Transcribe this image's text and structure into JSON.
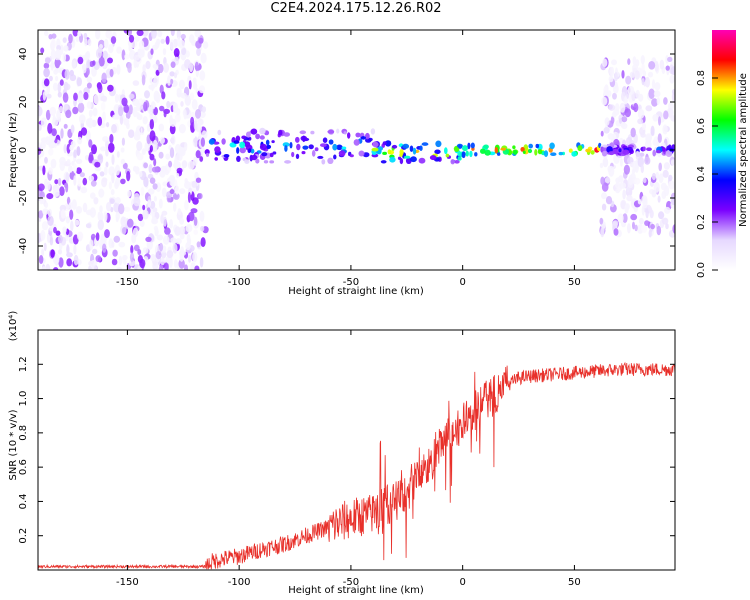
{
  "figure": {
    "title": "C2E4.2024.175.12.26.R02"
  },
  "chart_data": [
    {
      "type": "heatmap",
      "xlabel": "Height of straight line (km)",
      "ylabel": "Frequency (Hz)",
      "xlim": [
        -190,
        95
      ],
      "ylim": [
        -50,
        50
      ],
      "xticks": [
        -150,
        -100,
        -50,
        0,
        50
      ],
      "yticks": [
        -40,
        -20,
        0,
        20,
        40
      ],
      "grid": false,
      "colorbar": {
        "label": "Normalized spectral amplitude",
        "ticks": [
          0.0,
          0.2,
          0.4,
          0.6,
          0.8
        ],
        "colors": [
          "#ffffff",
          "#e6d8ff",
          "#7a00ff",
          "#0000ff",
          "#00ffff",
          "#00ff00",
          "#ffff00",
          "#ff0000",
          "#ff00b4"
        ],
        "range": [
          0,
          1
        ]
      },
      "regions": [
        {
          "x": [
            -190,
            -115
          ],
          "f": [
            -50,
            50
          ],
          "kind": "broadband noise",
          "amp": [
            0.02,
            0.25
          ]
        },
        {
          "x": [
            -115,
            -40
          ],
          "f": [
            -5,
            8
          ],
          "kind": "signal band",
          "amp": [
            0.2,
            0.5
          ]
        },
        {
          "x": [
            -40,
            0
          ],
          "f": [
            -5,
            3
          ],
          "kind": "signal band",
          "amp": [
            0.3,
            0.8
          ]
        },
        {
          "x": [
            0,
            62
          ],
          "f": [
            -2,
            2
          ],
          "kind": "signal band",
          "amp": [
            0.6,
            0.9
          ]
        },
        {
          "x": [
            62,
            95
          ],
          "f": [
            -35,
            38
          ],
          "kind": "sidelobe noise",
          "amp": [
            0.02,
            0.2
          ]
        },
        {
          "x": [
            62,
            95
          ],
          "f": [
            -2,
            2
          ],
          "kind": "signal band",
          "amp": [
            0.2,
            0.4
          ]
        }
      ]
    },
    {
      "type": "line",
      "xlabel": "Height of straight line (km)",
      "ylabel": "SNR (10 * v/v)",
      "y_exponent": "(x10⁴)",
      "xlim": [
        -190,
        95
      ],
      "ylim": [
        0,
        1.4
      ],
      "xticks": [
        -150,
        -100,
        -50,
        0,
        50
      ],
      "yticks": [
        0.2,
        0.4,
        0.6,
        0.8,
        1.0,
        1.2
      ],
      "ytick_labels": [
        "0.2",
        "0.4",
        "0.6",
        "0.8",
        "1.0",
        "1.2"
      ],
      "color": "#e8302a",
      "grid": false,
      "series": [
        {
          "x": [
            -190,
            -160,
            -130,
            -115,
            -112,
            -105,
            -100,
            -90,
            -80,
            -70,
            -60,
            -50,
            -40,
            -35,
            -30,
            -25,
            -20,
            -15,
            -10,
            -5,
            0,
            5,
            10,
            15,
            20,
            25,
            30,
            40,
            50,
            60,
            70,
            80,
            90,
            95
          ],
          "y": [
            0.02,
            0.02,
            0.02,
            0.02,
            0.05,
            0.07,
            0.08,
            0.12,
            0.15,
            0.2,
            0.25,
            0.3,
            0.33,
            0.38,
            0.4,
            0.45,
            0.55,
            0.6,
            0.72,
            0.8,
            0.85,
            0.92,
            0.98,
            1.03,
            1.08,
            1.12,
            1.13,
            1.14,
            1.15,
            1.16,
            1.17,
            1.17,
            1.17,
            1.17
          ]
        }
      ]
    }
  ]
}
